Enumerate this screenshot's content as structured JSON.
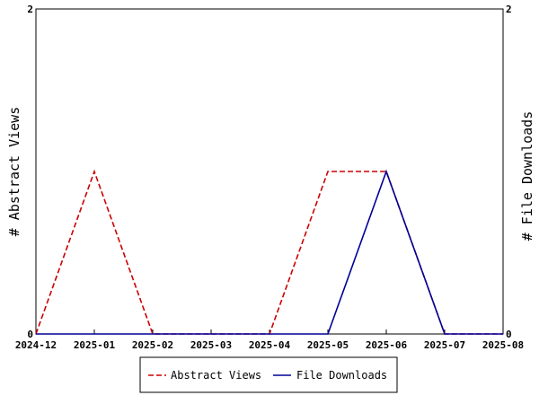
{
  "chart_data": {
    "type": "line",
    "x": [
      "2024-12",
      "2025-01",
      "2025-02",
      "2025-03",
      "2025-04",
      "2025-05",
      "2025-06",
      "2025-07",
      "2025-08"
    ],
    "series": [
      {
        "name": "Abstract Views",
        "axis": "left",
        "color": "#cc0000",
        "style": "dashed",
        "values": [
          0,
          1,
          0,
          0,
          0,
          1,
          1,
          0,
          0
        ]
      },
      {
        "name": "File Downloads",
        "axis": "right",
        "color": "#000099",
        "style": "solid",
        "values": [
          0,
          0,
          0,
          0,
          0,
          0,
          1,
          0,
          0
        ]
      }
    ],
    "ylabel_left": "# Abstract Views",
    "ylabel_right": "# File Downloads",
    "ylim_left": [
      0,
      2
    ],
    "ylim_right": [
      0,
      2
    ],
    "yticks_left": [
      "0",
      "2"
    ],
    "yticks_right": [
      "0",
      "2"
    ],
    "legend_placement": "bottom-center",
    "grid": false
  }
}
